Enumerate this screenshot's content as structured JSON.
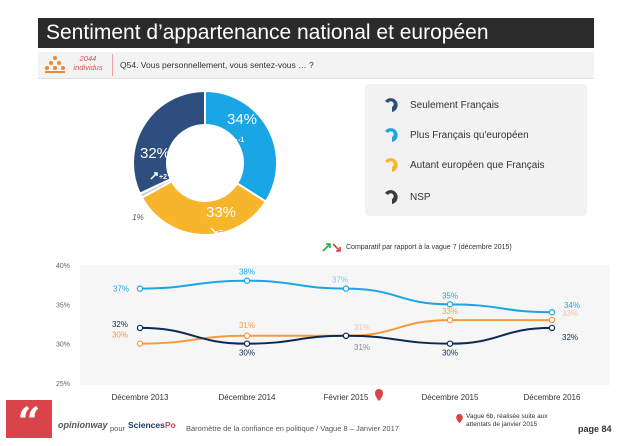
{
  "title": "Sentiment d’appartenance national et européen",
  "sample": {
    "count": "2044",
    "unit": "individus"
  },
  "question": "Q54. Vous personnellement, vous sentez-vous … ?",
  "colors": {
    "seulement_francais": "#2d4e7e",
    "plus_francais": "#1aa6e4",
    "autant_europeen": "#f7b52c",
    "nsp": "#3a3a3a",
    "line_plus_francais": "#1aa6e4",
    "line_autant_europeen": "#f59a3e",
    "line_seulement_francais": "#0d2a55",
    "accent": "#d9434a"
  },
  "donut": {
    "slices": [
      {
        "key": "plus_francais",
        "value": 34,
        "label": "34%",
        "change": "-1",
        "arrow": "down"
      },
      {
        "key": "autant_europeen",
        "value": 33,
        "label": "33%",
        "change": "=",
        "arrow": "down"
      },
      {
        "key": "nsp",
        "value": 1,
        "label": "1%",
        "change": "",
        "arrow": ""
      },
      {
        "key": "seulement_francais",
        "value": 32,
        "label": "32%",
        "change": "+2",
        "arrow": "up"
      }
    ]
  },
  "legend": [
    {
      "key": "seulement_francais",
      "label": "Seulement Français"
    },
    {
      "key": "plus_francais",
      "label": "Plus Français qu'européen"
    },
    {
      "key": "autant_europeen",
      "label": "Autant européen que Français"
    },
    {
      "key": "nsp",
      "label": "NSP"
    }
  ],
  "comparison_note": "Comparatif par rapport à la vague 7 (décembre 2015)",
  "chart_data": [
    {
      "type": "pie",
      "categories": [
        "Plus Français qu'européen",
        "Autant européen que Français",
        "NSP",
        "Seulement Français"
      ],
      "values": [
        34,
        33,
        1,
        32
      ],
      "title": "",
      "changes": [
        "-1",
        "=",
        "",
        "+2"
      ]
    },
    {
      "type": "line",
      "categories": [
        "Décembre 2013",
        "Décembre 2014",
        "Février 2015",
        "Décembre 2015",
        "Décembre 2016"
      ],
      "yticks": [
        "40%",
        "35%",
        "30%",
        "25%"
      ],
      "ylim": [
        25,
        40
      ],
      "series": [
        {
          "key": "line_plus_francais",
          "values": [
            37,
            38,
            37,
            35,
            34
          ],
          "labels": [
            "37%",
            "38%",
            "37%",
            "35%",
            "34%"
          ]
        },
        {
          "key": "line_autant_europeen",
          "values": [
            30,
            31,
            31,
            33,
            33
          ],
          "labels": [
            "30%",
            "31%",
            "31%",
            "33%",
            "33%"
          ]
        },
        {
          "key": "line_seulement_francais",
          "values": [
            32,
            30,
            31,
            30,
            32
          ],
          "labels": [
            "32%",
            "30%",
            "31%",
            "30%",
            "32%"
          ]
        }
      ],
      "xlabel": "",
      "ylabel": ""
    }
  ],
  "footer": {
    "brand1": "opinionway",
    "pour": "pour",
    "brand2_a": "Sciences",
    "brand2_b": "Po",
    "text": "Baromètre de la confiance en politique / Vague 8 – Janvier 2017",
    "footnote": "Vague 6b, réalisée suite aux attentats de janvier 2015",
    "page": "page 84"
  }
}
